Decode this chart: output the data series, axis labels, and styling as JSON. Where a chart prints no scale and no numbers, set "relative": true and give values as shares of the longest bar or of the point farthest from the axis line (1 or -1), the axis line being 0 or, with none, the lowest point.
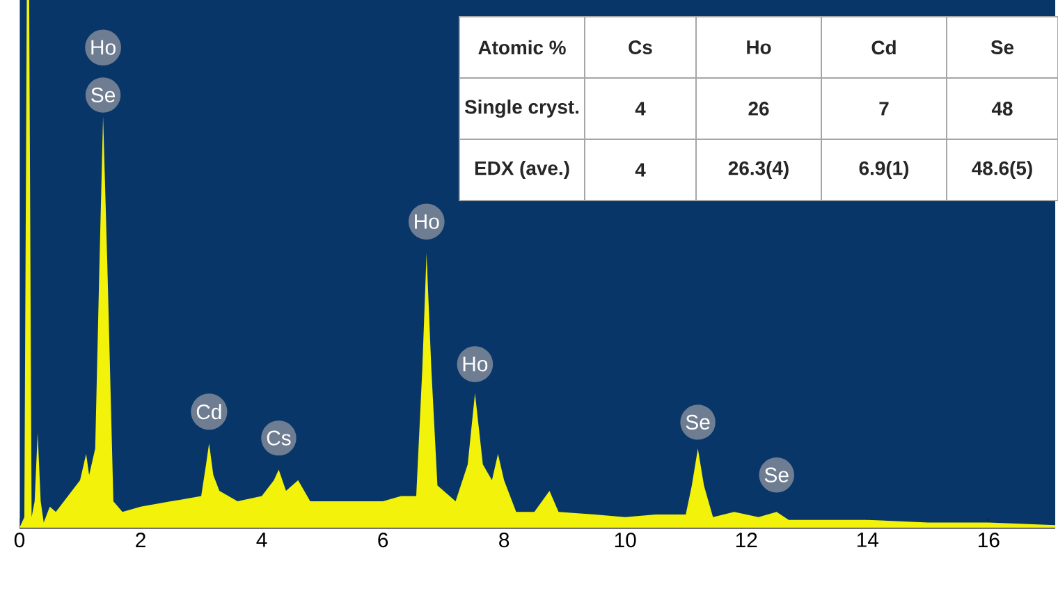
{
  "chart_data": {
    "type": "area",
    "relative": true,
    "xlim": [
      0,
      17.1
    ],
    "xticks": [
      0,
      2,
      4,
      6,
      8,
      10,
      12,
      14,
      16
    ],
    "x": [
      0.0,
      0.08,
      0.12,
      0.16,
      0.2,
      0.25,
      0.3,
      0.35,
      0.4,
      0.5,
      0.6,
      0.8,
      1.0,
      1.1,
      1.15,
      1.25,
      1.32,
      1.38,
      1.45,
      1.55,
      1.7,
      2.0,
      2.5,
      3.0,
      3.08,
      3.13,
      3.2,
      3.3,
      3.6,
      4.0,
      4.2,
      4.28,
      4.4,
      4.6,
      4.8,
      5.2,
      5.6,
      6.0,
      6.3,
      6.55,
      6.65,
      6.72,
      6.8,
      6.9,
      7.2,
      7.4,
      7.52,
      7.65,
      7.8,
      7.9,
      8.0,
      8.2,
      8.5,
      8.75,
      8.9,
      9.5,
      10.0,
      10.5,
      11.0,
      11.1,
      11.2,
      11.3,
      11.45,
      11.8,
      12.2,
      12.5,
      12.7,
      13.5,
      14.0,
      15.0,
      16.0,
      17.1
    ],
    "series": [
      {
        "color": "#f2f20a",
        "values": [
          0.0,
          0.02,
          1.0,
          1.0,
          0.02,
          0.05,
          0.18,
          0.05,
          0.01,
          0.04,
          0.03,
          0.06,
          0.09,
          0.14,
          0.1,
          0.15,
          0.5,
          0.78,
          0.5,
          0.05,
          0.03,
          0.04,
          0.05,
          0.06,
          0.12,
          0.16,
          0.1,
          0.07,
          0.05,
          0.06,
          0.09,
          0.11,
          0.07,
          0.09,
          0.05,
          0.05,
          0.05,
          0.05,
          0.06,
          0.06,
          0.3,
          0.52,
          0.3,
          0.08,
          0.05,
          0.12,
          0.255,
          0.12,
          0.09,
          0.14,
          0.09,
          0.03,
          0.03,
          0.07,
          0.03,
          0.025,
          0.02,
          0.025,
          0.025,
          0.08,
          0.15,
          0.08,
          0.02,
          0.03,
          0.02,
          0.03,
          0.015,
          0.015,
          0.015,
          0.01,
          0.01,
          0.005
        ]
      }
    ],
    "annotations": [
      {
        "text": "Ho",
        "x": 1.38,
        "y": 0.91
      },
      {
        "text": "Se",
        "x": 1.38,
        "y": 0.82
      },
      {
        "text": "Cd",
        "x": 3.13,
        "y": 0.22
      },
      {
        "text": "Cs",
        "x": 4.28,
        "y": 0.17
      },
      {
        "text": "Ho",
        "x": 6.72,
        "y": 0.58
      },
      {
        "text": "Ho",
        "x": 7.52,
        "y": 0.31
      },
      {
        "text": "Se",
        "x": 11.2,
        "y": 0.2
      },
      {
        "text": "Se",
        "x": 12.5,
        "y": 0.1
      },
      "Atomic %",
      "Cs",
      "Ho",
      "Cd",
      "Se",
      "Single cryst.",
      "4",
      "26",
      "7",
      "48",
      "EDX (ave.)",
      "4",
      "26.3(4)",
      "6.9(1)",
      "48.6(5)"
    ]
  }
}
